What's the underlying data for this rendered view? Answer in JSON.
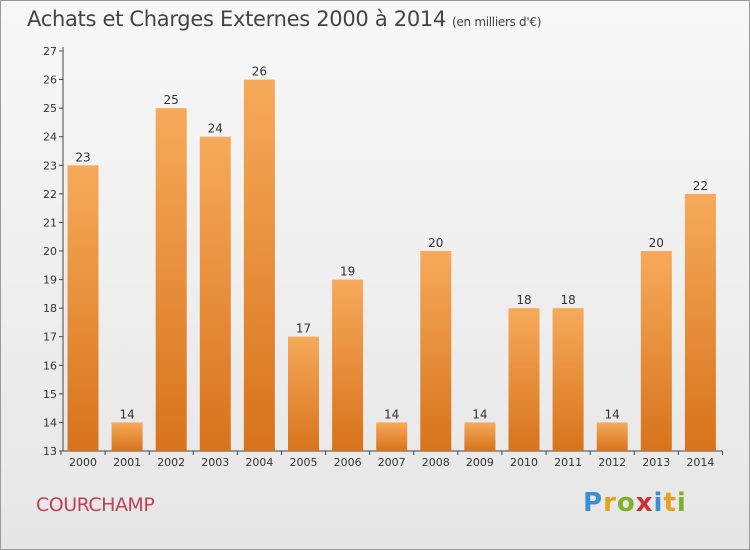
{
  "title": "Achats et Charges Externes 2000 à 2014",
  "unit": "(en milliers d'€)",
  "commune": "COURCHAMP",
  "logo": {
    "text": "Proxiti",
    "letters": [
      "P",
      "r",
      "o",
      "x",
      "i",
      "t",
      "i"
    ],
    "colors": [
      "#3a8fd0",
      "#e8a21a",
      "#7cb32b",
      "#d03030",
      "#3a8fd0",
      "#e8a21a",
      "#7cb32b"
    ]
  },
  "colors": {
    "bar_light": "#f6aa5a",
    "bar_dark": "#d8731c",
    "title": "#444444",
    "commune": "#c0405a"
  },
  "chart_data": {
    "type": "bar",
    "categories": [
      "2000",
      "2001",
      "2002",
      "2003",
      "2004",
      "2005",
      "2006",
      "2007",
      "2008",
      "2009",
      "2010",
      "2011",
      "2012",
      "2013",
      "2014"
    ],
    "values": [
      23,
      14,
      25,
      24,
      26,
      17,
      19,
      14,
      20,
      14,
      18,
      18,
      14,
      20,
      22
    ],
    "data_labels": [
      "23",
      "14",
      "25",
      "24",
      "26",
      "17",
      "19",
      "14",
      "20",
      "14",
      "18",
      "18",
      "14",
      "20",
      "22"
    ],
    "ylim": [
      13,
      27
    ],
    "yticks": [
      "13",
      "14",
      "15",
      "16",
      "17",
      "18",
      "19",
      "20",
      "21",
      "22",
      "23",
      "24",
      "25",
      "26",
      "27"
    ],
    "grid": false,
    "xlabel": "",
    "ylabel": ""
  }
}
